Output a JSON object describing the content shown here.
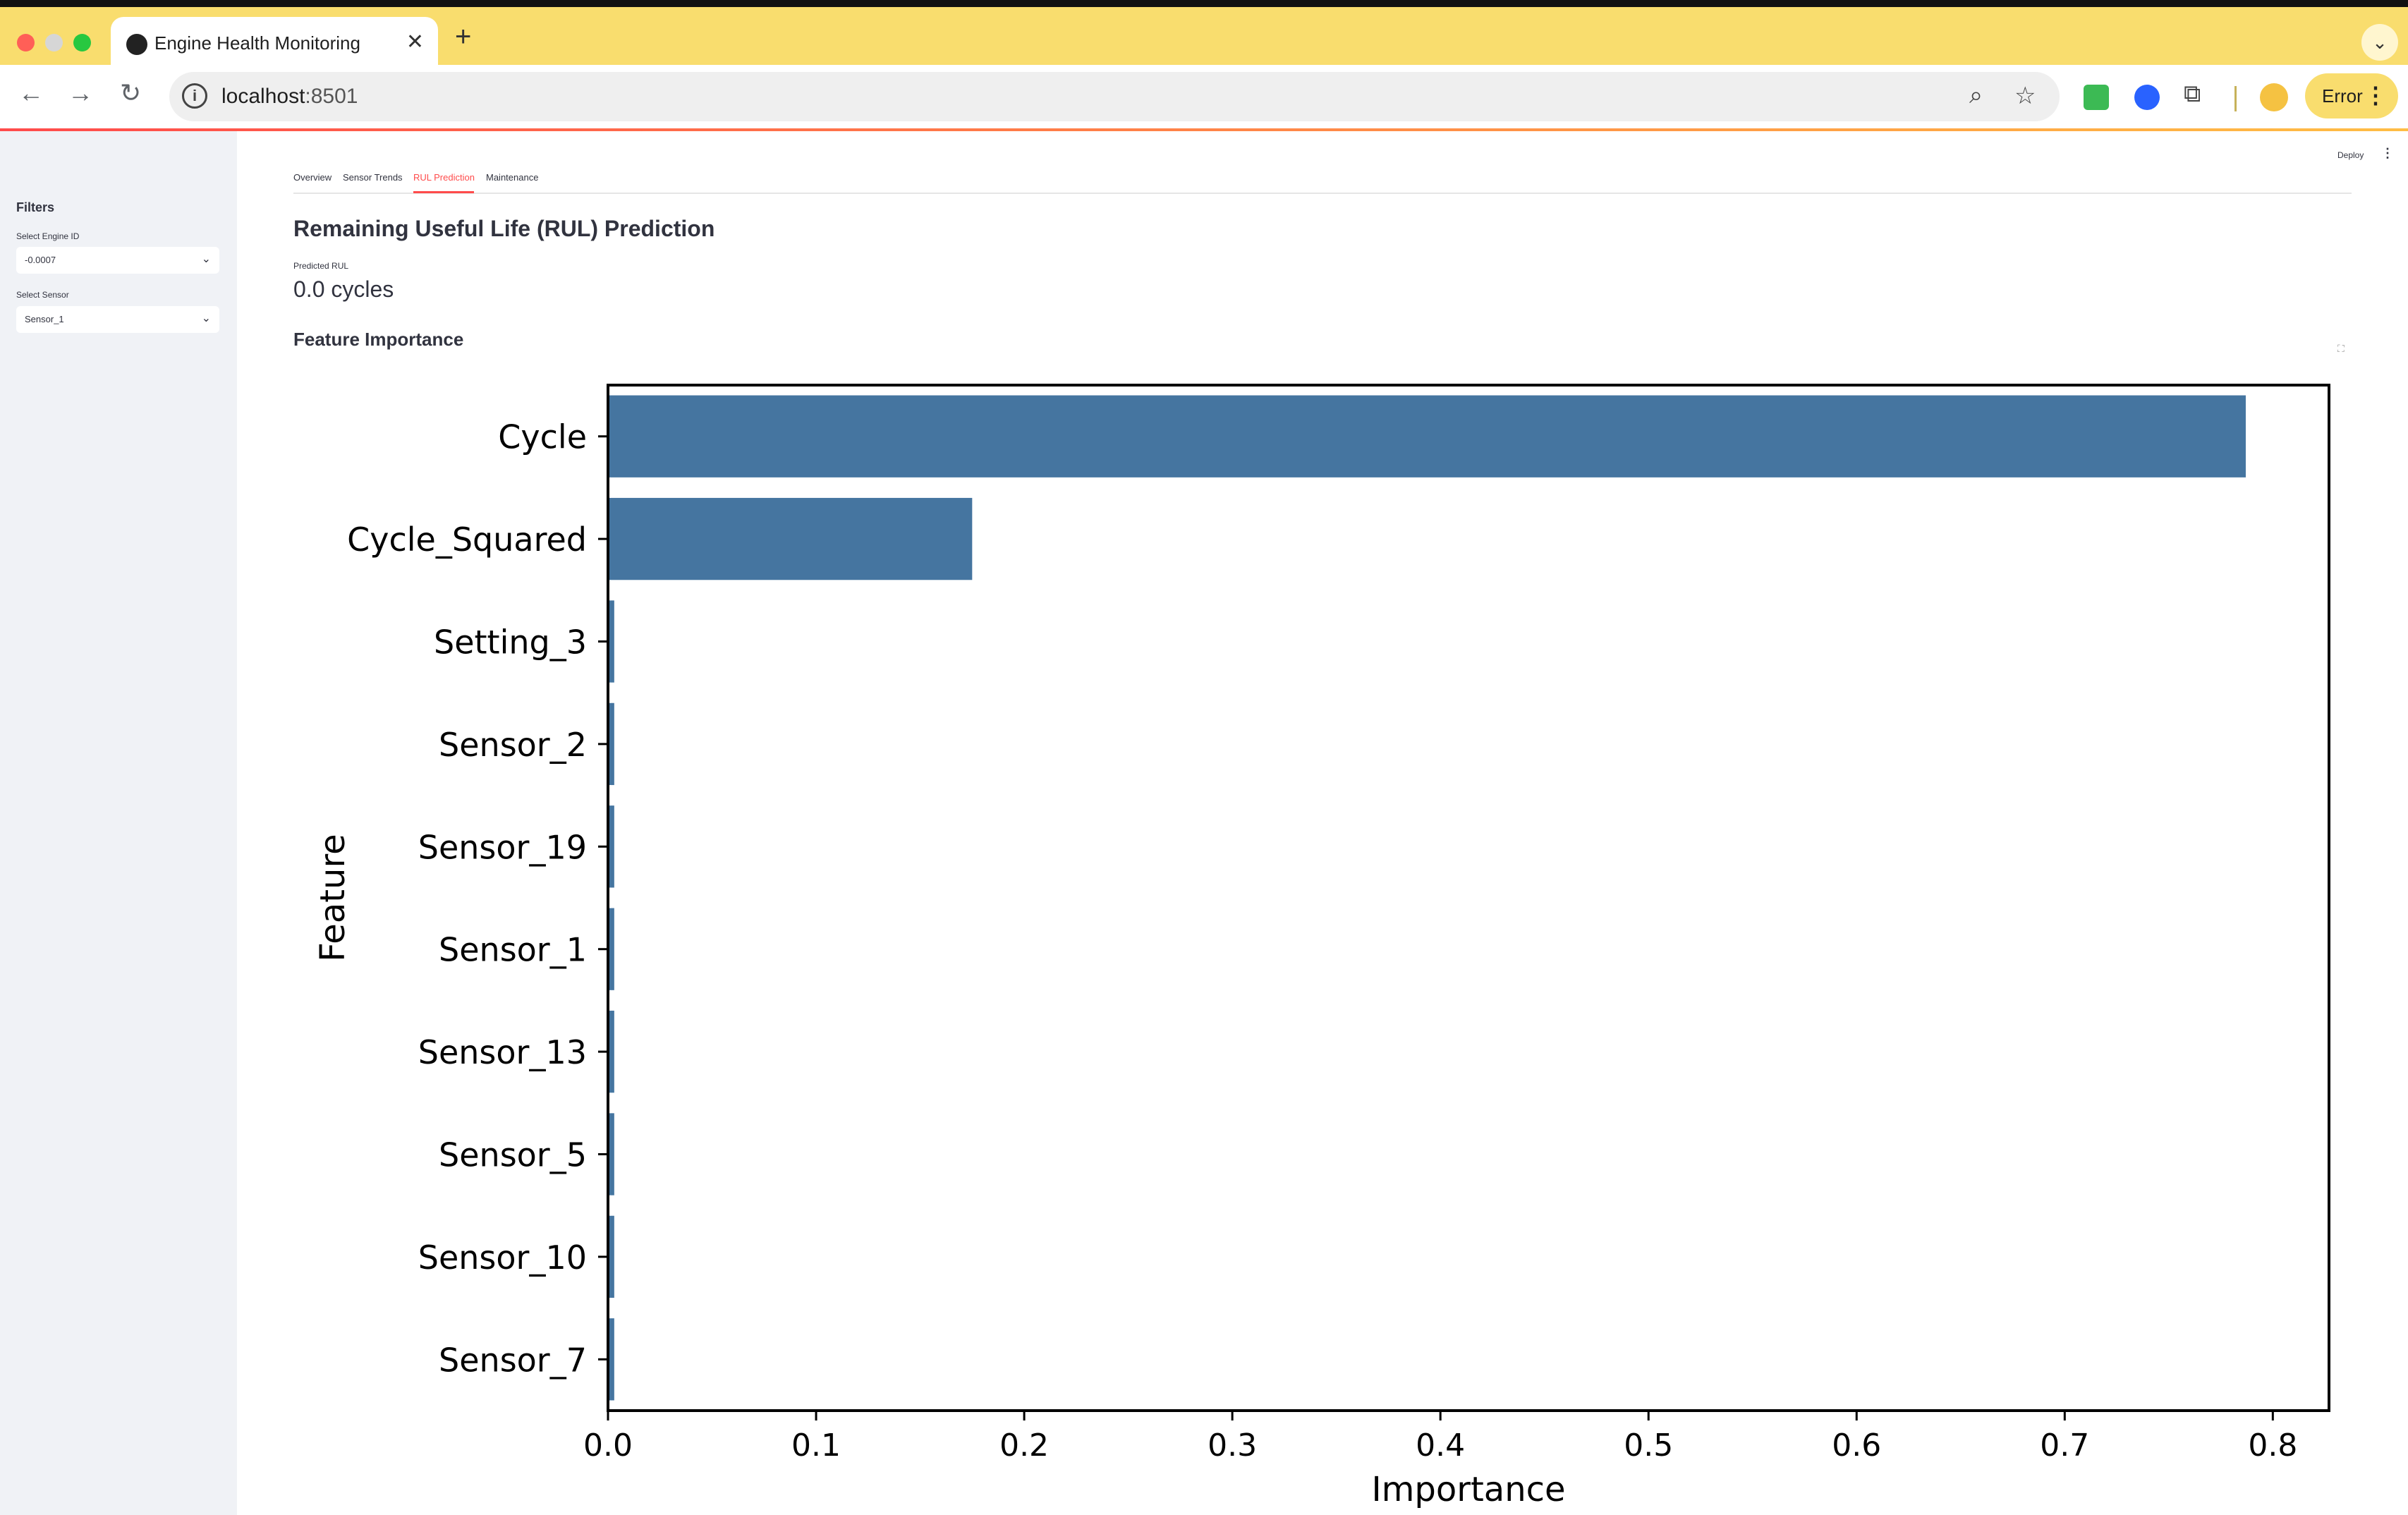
{
  "browser": {
    "tab_title": "Engine Health Monitoring",
    "url_host": "localhost",
    "url_port": ":8501",
    "profile_button": "Error",
    "icons": [
      "back-icon",
      "forward-icon",
      "reload-icon",
      "zoom-icon",
      "bookmark-star-icon",
      "extensions-icon"
    ]
  },
  "sidebar": {
    "heading": "Filters",
    "engine_label": "Select Engine ID",
    "engine_value": "-0.0007",
    "sensor_label": "Select Sensor",
    "sensor_value": "Sensor_1"
  },
  "header": {
    "deploy": "Deploy"
  },
  "tabs": [
    {
      "label": "Overview",
      "active": false
    },
    {
      "label": "Sensor Trends",
      "active": false
    },
    {
      "label": "RUL Prediction",
      "active": true
    },
    {
      "label": "Maintenance",
      "active": false
    }
  ],
  "main": {
    "title": "Remaining Useful Life (RUL) Prediction",
    "metric_label": "Predicted RUL",
    "metric_value": "0.0 cycles",
    "section_title": "Feature Importance"
  },
  "colors": {
    "bar": "#4575a0",
    "accent": "#ff4b4b",
    "chrome": "#f9dd6e",
    "sidebar": "#f0f2f6"
  },
  "chart_data": {
    "type": "bar",
    "orientation": "horizontal",
    "categories": [
      "Cycle",
      "Cycle_Squared",
      "Setting_3",
      "Sensor_2",
      "Sensor_19",
      "Sensor_1",
      "Sensor_13",
      "Sensor_5",
      "Sensor_10",
      "Sensor_7"
    ],
    "values": [
      0.787,
      0.175,
      0.003,
      0.003,
      0.003,
      0.003,
      0.003,
      0.003,
      0.003,
      0.003
    ],
    "xlabel": "Importance",
    "ylabel": "Feature",
    "xlim": [
      0,
      0.827
    ],
    "xticks": [
      "0.0",
      "0.1",
      "0.2",
      "0.3",
      "0.4",
      "0.5",
      "0.6",
      "0.7",
      "0.8"
    ],
    "grid": false
  }
}
